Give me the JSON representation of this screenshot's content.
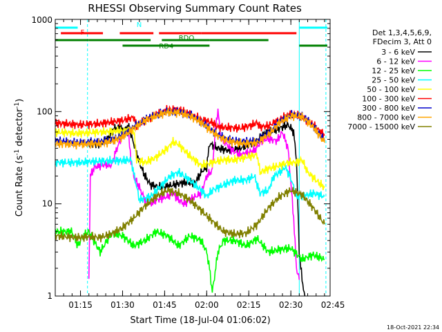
{
  "chart_data": {
    "type": "line",
    "title": "RHESSI Observing Summary Count Rates",
    "xlabel": "Start Time (18-Jul-04 01:06:02)",
    "ylabel_pre": "Count Rate (s",
    "ylabel_sup": "-1",
    "ylabel_post": " detector",
    "ylabel_end": ")",
    "yscale": "log",
    "ylim": [
      1,
      1000
    ],
    "xlim_minutes": [
      0,
      98
    ],
    "x_ticks": [
      {
        "label": "01:15",
        "min": 9
      },
      {
        "label": "01:30",
        "min": 24
      },
      {
        "label": "01:45",
        "min": 39
      },
      {
        "label": "02:00",
        "min": 54
      },
      {
        "label": "02:15",
        "min": 69
      },
      {
        "label": "02:30",
        "min": 84
      },
      {
        "label": "02:45",
        "min": 99
      }
    ],
    "y_ticks": [
      {
        "label": "1",
        "v": 1
      },
      {
        "label": "10",
        "v": 10
      },
      {
        "label": "100",
        "v": 100
      },
      {
        "label": "1000",
        "v": 1000
      }
    ],
    "legend_header": [
      "Det 1,3,4,5,6,9,",
      "FDecim 3, Att 0"
    ],
    "timestamp": "18-Oct-2021 22:34",
    "flags": [
      {
        "label": "N",
        "color": "#00ffff",
        "y": 40,
        "segments": [
          [
            0,
            8
          ],
          [
            87,
            97
          ]
        ]
      },
      {
        "label": "F",
        "color": "#ff0000",
        "y": 48,
        "segments": [
          [
            2,
            17
          ],
          [
            23,
            35
          ],
          [
            37,
            52
          ],
          [
            52,
            86
          ]
        ]
      },
      {
        "label": "RDO",
        "color": "#008000",
        "y": 58,
        "segments": [
          [
            0,
            12
          ],
          [
            12,
            34
          ],
          [
            38,
            55
          ],
          [
            55,
            76
          ]
        ]
      },
      {
        "label": "RD4",
        "color": "#008000",
        "y": 66,
        "segments": [
          [
            24,
            55
          ],
          [
            87,
            97
          ]
        ]
      }
    ],
    "series": [
      {
        "name": "3 - 6 keV",
        "color": "#000000",
        "points": [
          [
            12,
            45
          ],
          [
            16,
            44
          ],
          [
            19,
            52
          ],
          [
            21,
            65
          ],
          [
            23,
            68
          ],
          [
            24,
            62
          ],
          [
            25,
            65
          ],
          [
            26,
            70
          ],
          [
            28,
            45
          ],
          [
            30,
            28
          ],
          [
            32,
            20
          ],
          [
            34,
            16
          ],
          [
            38,
            15
          ],
          [
            42,
            16
          ],
          [
            46,
            17
          ],
          [
            50,
            17
          ],
          [
            52,
            22
          ],
          [
            54,
            25
          ],
          [
            55,
            45
          ],
          [
            58,
            40
          ],
          [
            62,
            38
          ],
          [
            66,
            40
          ],
          [
            69,
            44
          ],
          [
            72,
            48
          ],
          [
            75,
            60
          ],
          [
            78,
            62
          ],
          [
            81,
            68
          ],
          [
            83,
            72
          ],
          [
            85,
            60
          ],
          [
            86,
            30
          ],
          [
            87,
            3
          ],
          [
            88,
            1.5
          ],
          [
            89,
            1
          ]
        ]
      },
      {
        "name": "6 - 12 keV",
        "color": "#ff00ff",
        "points": [
          [
            12,
            1.5
          ],
          [
            12.5,
            20
          ],
          [
            14,
            25
          ],
          [
            16,
            26
          ],
          [
            18,
            27
          ],
          [
            20,
            26
          ],
          [
            22,
            40
          ],
          [
            24,
            55
          ],
          [
            26,
            60
          ],
          [
            27,
            30
          ],
          [
            28,
            20
          ],
          [
            30,
            15
          ],
          [
            32,
            11
          ],
          [
            34,
            10
          ],
          [
            36,
            11
          ],
          [
            40,
            12
          ],
          [
            42,
            13
          ],
          [
            44,
            11
          ],
          [
            46,
            10
          ],
          [
            48,
            11
          ],
          [
            52,
            13
          ],
          [
            54,
            20
          ],
          [
            56,
            23
          ],
          [
            57,
            60
          ],
          [
            58,
            105
          ],
          [
            59,
            52
          ],
          [
            61,
            45
          ],
          [
            63,
            38
          ],
          [
            66,
            34
          ],
          [
            69,
            36
          ],
          [
            71,
            38
          ],
          [
            74,
            50
          ],
          [
            77,
            50
          ],
          [
            79,
            48
          ],
          [
            81,
            60
          ],
          [
            83,
            40
          ],
          [
            85,
            7
          ],
          [
            86,
            2
          ],
          [
            87,
            1.5
          ]
        ]
      },
      {
        "name": "12 - 25 keV",
        "color": "#00ff00",
        "points": [
          [
            0,
            5
          ],
          [
            6,
            5
          ],
          [
            8,
            3.5
          ],
          [
            10,
            4.5
          ],
          [
            12,
            5
          ],
          [
            16,
            3
          ],
          [
            20,
            4.8
          ],
          [
            24,
            4.5
          ],
          [
            28,
            3.5
          ],
          [
            32,
            4
          ],
          [
            36,
            5
          ],
          [
            40,
            4.5
          ],
          [
            44,
            3.5
          ],
          [
            48,
            4.5
          ],
          [
            52,
            4
          ],
          [
            54,
            3
          ],
          [
            55,
            2
          ],
          [
            56,
            1.1
          ],
          [
            58,
            3
          ],
          [
            60,
            4
          ],
          [
            64,
            4
          ],
          [
            68,
            3.5
          ],
          [
            72,
            4.2
          ],
          [
            76,
            3
          ],
          [
            80,
            3.2
          ],
          [
            84,
            3.3
          ],
          [
            88,
            2.5
          ],
          [
            92,
            2.8
          ],
          [
            96,
            2.5
          ]
        ]
      },
      {
        "name": "25 - 50 keV",
        "color": "#00ffff",
        "points": [
          [
            0,
            28
          ],
          [
            8,
            28
          ],
          [
            16,
            29
          ],
          [
            24,
            29.5
          ],
          [
            27,
            30
          ],
          [
            30,
            11
          ],
          [
            34,
            12
          ],
          [
            38,
            16
          ],
          [
            41,
            20
          ],
          [
            44,
            22
          ],
          [
            48,
            18
          ],
          [
            52,
            14
          ],
          [
            54,
            12
          ],
          [
            56,
            14
          ],
          [
            60,
            16
          ],
          [
            64,
            18
          ],
          [
            68,
            18
          ],
          [
            71,
            20
          ],
          [
            73,
            13
          ],
          [
            76,
            14
          ],
          [
            78,
            20
          ],
          [
            80,
            22
          ],
          [
            82,
            25
          ],
          [
            84,
            19
          ],
          [
            86,
            12
          ],
          [
            88,
            12
          ],
          [
            92,
            13
          ],
          [
            96,
            12
          ]
        ]
      },
      {
        "name": "50 - 100 keV",
        "color": "#ffff00",
        "points": [
          [
            0,
            60
          ],
          [
            8,
            58
          ],
          [
            16,
            60
          ],
          [
            24,
            62
          ],
          [
            28,
            62
          ],
          [
            29,
            30
          ],
          [
            32,
            28
          ],
          [
            36,
            32
          ],
          [
            40,
            40
          ],
          [
            42,
            47
          ],
          [
            44,
            44
          ],
          [
            48,
            33
          ],
          [
            52,
            26
          ],
          [
            56,
            28
          ],
          [
            60,
            30
          ],
          [
            64,
            30
          ],
          [
            68,
            32
          ],
          [
            72,
            34
          ],
          [
            73,
            22
          ],
          [
            76,
            24
          ],
          [
            80,
            26
          ],
          [
            83,
            28
          ],
          [
            86,
            28
          ],
          [
            88,
            30
          ],
          [
            90,
            22
          ],
          [
            93,
            18
          ],
          [
            96,
            15
          ]
        ]
      },
      {
        "name": "100 - 300 keV",
        "color": "#ff0000",
        "points": [
          [
            0,
            75
          ],
          [
            8,
            72
          ],
          [
            16,
            74
          ],
          [
            24,
            80
          ],
          [
            28,
            87
          ],
          [
            29,
            70
          ],
          [
            32,
            80
          ],
          [
            36,
            93
          ],
          [
            40,
            105
          ],
          [
            44,
            105
          ],
          [
            48,
            95
          ],
          [
            52,
            82
          ],
          [
            56,
            76
          ],
          [
            58,
            68
          ],
          [
            62,
            67
          ],
          [
            66,
            66
          ],
          [
            70,
            71
          ],
          [
            72,
            76
          ],
          [
            73,
            68
          ],
          [
            76,
            70
          ],
          [
            80,
            82
          ],
          [
            84,
            95
          ],
          [
            88,
            88
          ],
          [
            92,
            72
          ],
          [
            96,
            55
          ]
        ]
      },
      {
        "name": "300 - 800 keV",
        "color": "#0000cc",
        "points": [
          [
            0,
            48
          ],
          [
            8,
            46
          ],
          [
            16,
            47
          ],
          [
            20,
            49
          ],
          [
            24,
            55
          ],
          [
            28,
            68
          ],
          [
            32,
            82
          ],
          [
            36,
            92
          ],
          [
            40,
            100
          ],
          [
            44,
            99
          ],
          [
            48,
            92
          ],
          [
            52,
            78
          ],
          [
            56,
            62
          ],
          [
            60,
            52
          ],
          [
            64,
            48
          ],
          [
            68,
            47
          ],
          [
            72,
            48
          ],
          [
            76,
            58
          ],
          [
            80,
            78
          ],
          [
            84,
            92
          ],
          [
            88,
            90
          ],
          [
            92,
            70
          ],
          [
            96,
            48
          ]
        ]
      },
      {
        "name": "800 - 7000 keV",
        "color": "#ffa500",
        "points": [
          [
            0,
            45
          ],
          [
            8,
            44
          ],
          [
            16,
            45
          ],
          [
            20,
            47
          ],
          [
            24,
            53
          ],
          [
            28,
            66
          ],
          [
            32,
            80
          ],
          [
            36,
            90
          ],
          [
            40,
            98
          ],
          [
            44,
            97
          ],
          [
            48,
            90
          ],
          [
            52,
            76
          ],
          [
            56,
            60
          ],
          [
            60,
            50
          ],
          [
            64,
            46
          ],
          [
            68,
            45
          ],
          [
            72,
            46
          ],
          [
            76,
            56
          ],
          [
            80,
            76
          ],
          [
            84,
            90
          ],
          [
            88,
            88
          ],
          [
            92,
            68
          ],
          [
            96,
            46
          ]
        ]
      },
      {
        "name": "7000 - 15000 keV",
        "color": "#808000",
        "points": [
          [
            0,
            4.5
          ],
          [
            8,
            4.3
          ],
          [
            12,
            4.4
          ],
          [
            16,
            4.3
          ],
          [
            20,
            4.7
          ],
          [
            24,
            5.5
          ],
          [
            28,
            7
          ],
          [
            32,
            9.5
          ],
          [
            36,
            12
          ],
          [
            40,
            14
          ],
          [
            44,
            13
          ],
          [
            48,
            11
          ],
          [
            52,
            8.5
          ],
          [
            56,
            6.5
          ],
          [
            60,
            5
          ],
          [
            64,
            4.7
          ],
          [
            68,
            4.8
          ],
          [
            72,
            6
          ],
          [
            76,
            9
          ],
          [
            80,
            12
          ],
          [
            84,
            14
          ],
          [
            88,
            12.5
          ],
          [
            92,
            9
          ],
          [
            96,
            6
          ]
        ]
      }
    ]
  }
}
